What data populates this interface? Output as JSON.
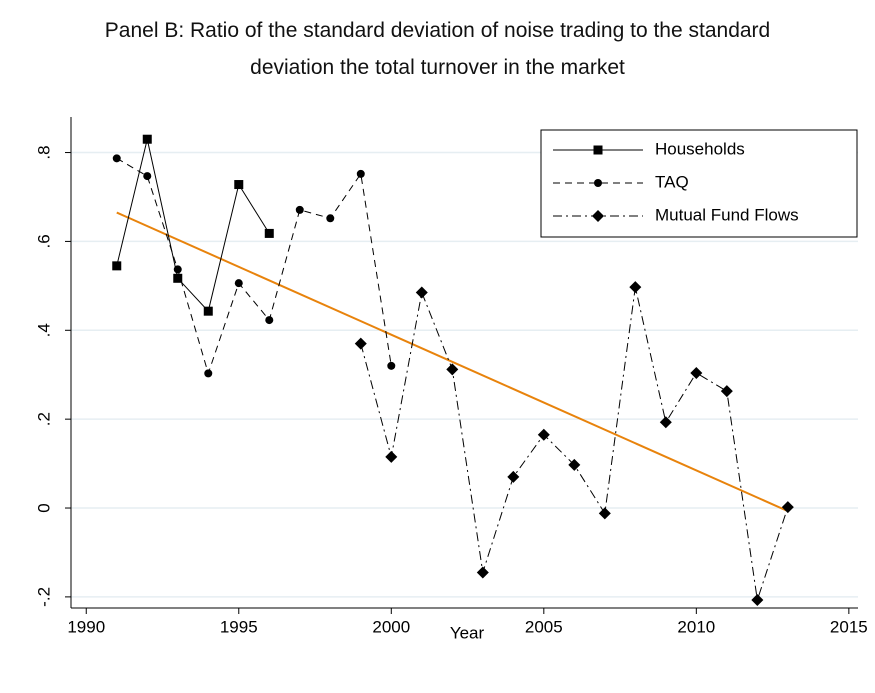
{
  "chart_data": {
    "type": "line",
    "title": "Panel B: Ratio of the standard deviation of noise trading to the standard deviation the total turnover in the market",
    "x_label": "Year",
    "xlim": [
      1989.5,
      2015.3
    ],
    "xticks": [
      1990,
      1995,
      2000,
      2005,
      2010,
      2015
    ],
    "ylim": [
      -0.225,
      0.88
    ],
    "yticks": [
      {
        "value": -0.2,
        "label": "-.2"
      },
      0,
      {
        "value": 0.2,
        "label": ".2"
      },
      {
        "value": 0.4,
        "label": ".4"
      },
      {
        "value": 0.6,
        "label": ".6"
      },
      {
        "value": 0.8,
        "label": ".8"
      }
    ],
    "grid": true,
    "legend": "top-right",
    "series": [
      {
        "name": "Households",
        "color": "#000000",
        "dash": "solid",
        "marker": "square",
        "x": [
          1991,
          1992,
          1993,
          1994,
          1995,
          1996
        ],
        "values": [
          0.545,
          0.83,
          0.517,
          0.443,
          0.728,
          0.618
        ]
      },
      {
        "name": "TAQ",
        "color": "#000000",
        "dash": "dashed",
        "marker": "circle",
        "x": [
          1991,
          1992,
          1993,
          1994,
          1995,
          1996,
          1997,
          1998,
          1999,
          2000
        ],
        "values": [
          0.787,
          0.747,
          0.537,
          0.303,
          0.506,
          0.423,
          0.671,
          0.652,
          0.752,
          0.32
        ]
      },
      {
        "name": "Mutual Fund Flows",
        "color": "#000000",
        "dash": "dashdot",
        "marker": "diamond",
        "x": [
          1999,
          2000,
          2001,
          2002,
          2003,
          2004,
          2005,
          2006,
          2007,
          2008,
          2009,
          2010,
          2011,
          2012,
          2013
        ],
        "values": [
          0.37,
          0.115,
          0.485,
          0.312,
          -0.145,
          0.07,
          0.165,
          0.097,
          -0.012,
          0.497,
          0.193,
          0.304,
          0.263,
          -0.207,
          0.002
        ]
      }
    ],
    "trend": {
      "color": "#e8830c",
      "x": [
        1991,
        2013
      ],
      "values": [
        0.665,
        -0.007
      ]
    }
  }
}
